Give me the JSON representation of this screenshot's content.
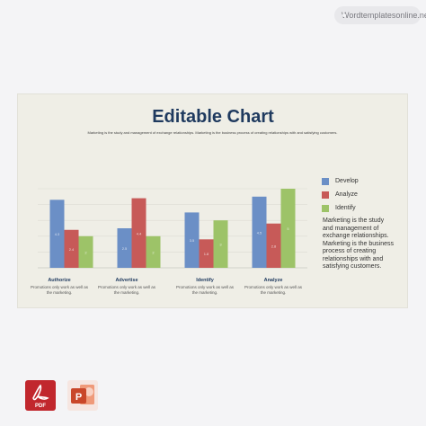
{
  "watermark": {
    "text": "Wordtemplatesonline.net",
    "logo_icon": "wt-logo-icon"
  },
  "slide": {
    "title": "Editable Chart",
    "subtitle": "Marketing is the study and management of exchange relationships. Marketing is the business process of creating relationships with and satisfying customers.",
    "description": "Marketing is the study and management of exchange relationships. Marketing is the business process of creating relationships with and satisfying customers."
  },
  "chart_data": {
    "type": "bar",
    "categories": [
      "Authorize",
      "Advertise",
      "Identify",
      "Analyze"
    ],
    "category_descriptions": [
      "Promotions only work as well as the marketing.",
      "Promotions only work as well as the marketing.",
      "Promotions only work as well as the marketing.",
      "Promotions only work as well as the marketing."
    ],
    "series": [
      {
        "name": "Develop",
        "color": "#6b8fc6",
        "values": [
          4.3,
          2.5,
          3.5,
          4.5
        ]
      },
      {
        "name": "Analyze",
        "color": "#c75a58",
        "values": [
          2.4,
          4.4,
          1.8,
          2.8
        ]
      },
      {
        "name": "Identify",
        "color": "#9dc368",
        "values": [
          2.0,
          2.0,
          3.0,
          5.0
        ]
      }
    ],
    "data_labels": [
      [
        "4.3",
        "2.4",
        "2"
      ],
      [
        "2.5",
        "4.4",
        "2"
      ],
      [
        "3.5",
        "1.8",
        "3"
      ],
      [
        "4.5",
        "2.8",
        "5"
      ]
    ],
    "ylim": [
      0,
      5
    ],
    "grid": true,
    "legend_position": "right"
  },
  "files": [
    {
      "name": "pdf-file-icon",
      "label": "PDF",
      "color": "#c1272d"
    },
    {
      "name": "powerpoint-file-icon",
      "label": "P",
      "color": "#c9472a"
    }
  ]
}
